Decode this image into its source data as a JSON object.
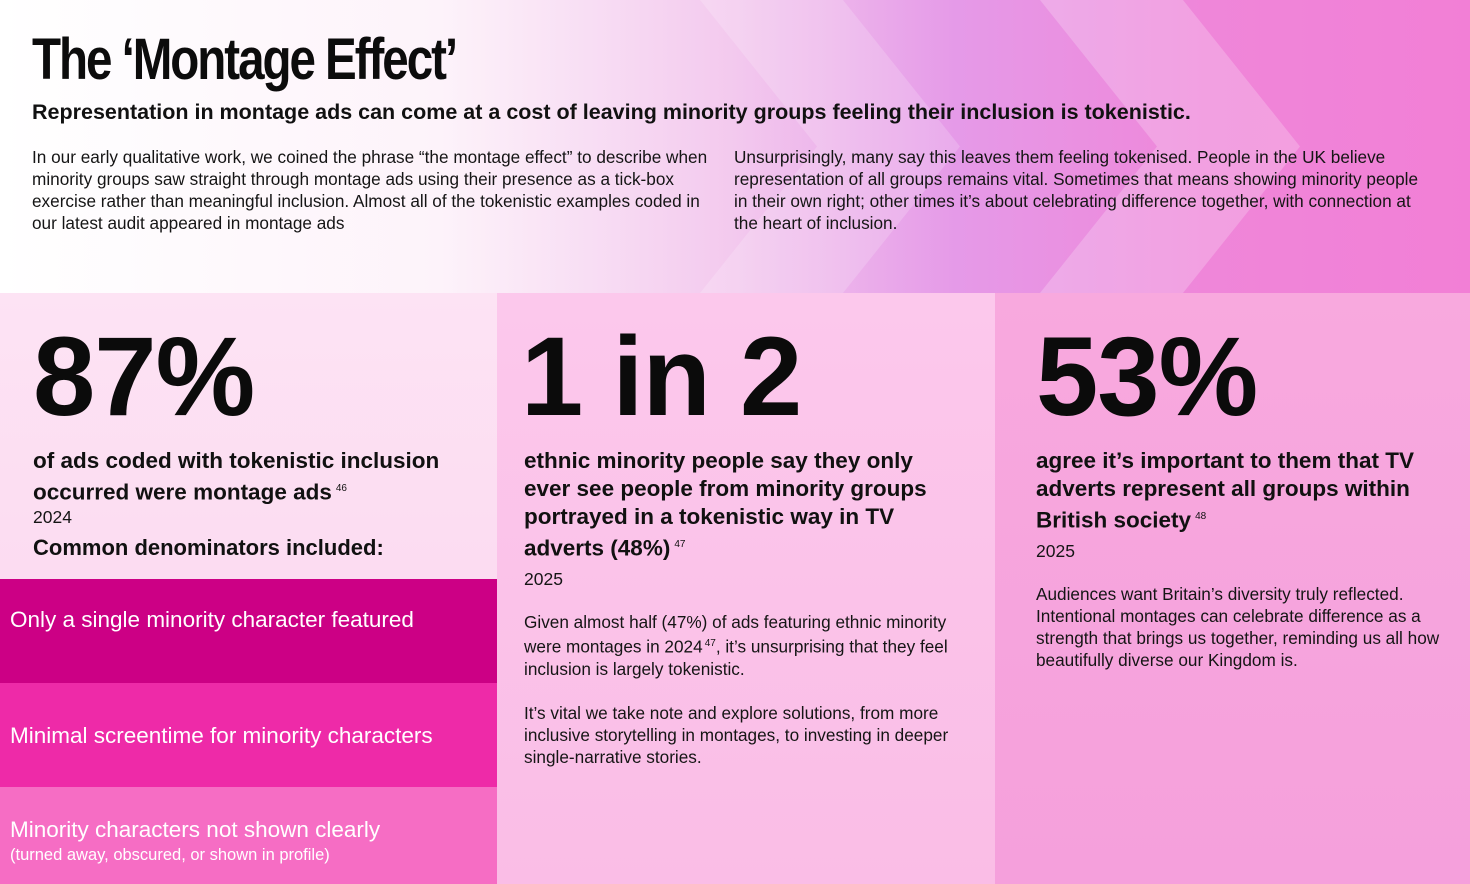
{
  "header": {
    "title": "The ‘Montage Effect’",
    "subtitle": "Representation in montage ads can come at a cost of leaving minority groups feeling their inclusion is tokenistic.",
    "intro_left": "In our early qualitative work, we coined the phrase “the montage effect” to describe when minority groups saw straight through montage ads using their presence as a tick-box exercise rather than meaningful inclusion. Almost all of the tokenistic examples coded in our latest audit appeared in montage ads",
    "intro_right": "Unsurprisingly, many say this leaves them feeling tokenised. People in the UK believe representation of all groups remains vital. Sometimes that means showing minority people in their own right; other times it’s about celebrating difference together, with connection at the heart of inclusion."
  },
  "stats": [
    {
      "number": "87%",
      "text": "of ads coded with tokenistic inclusion occurred were montage ads",
      "ref": "46",
      "year": "2024",
      "extra_heading": "Common denominators included:"
    },
    {
      "number": "1 in 2",
      "text": "ethnic minority people say they only ever see people from minority groups portrayed in a tokenistic way in TV adverts (48%)",
      "ref": "47",
      "year": "2025",
      "para1_a": "Given almost half (47%) of ads featuring ethnic minority were montages in 2024",
      "para1_ref": "47",
      "para1_b": ", it’s unsurprising that they feel inclusion is largely tokenistic.",
      "para2": "It’s vital we take note and explore solutions, from more inclusive storytelling in montages, to investing in deeper single-narrative stories."
    },
    {
      "number": "53%",
      "text": "agree it’s important to them that TV adverts represent all groups within British society",
      "ref": "48",
      "year": "2025",
      "para1": "Audiences want Britain’s diversity truly reflected. Intentional montages can celebrate difference as a strength that brings us together, reminding us all how beautifully diverse our Kingdom is."
    }
  ],
  "denominators": [
    {
      "label": "Only a single minority character featured",
      "color": "#cc0085"
    },
    {
      "label": "Minimal screentime for minority characters",
      "color": "#ee2aa8"
    },
    {
      "label": "Minority characters not shown clearly",
      "note": "(turned away, obscured, or shown in profile)",
      "color": "#f66dc4"
    }
  ]
}
